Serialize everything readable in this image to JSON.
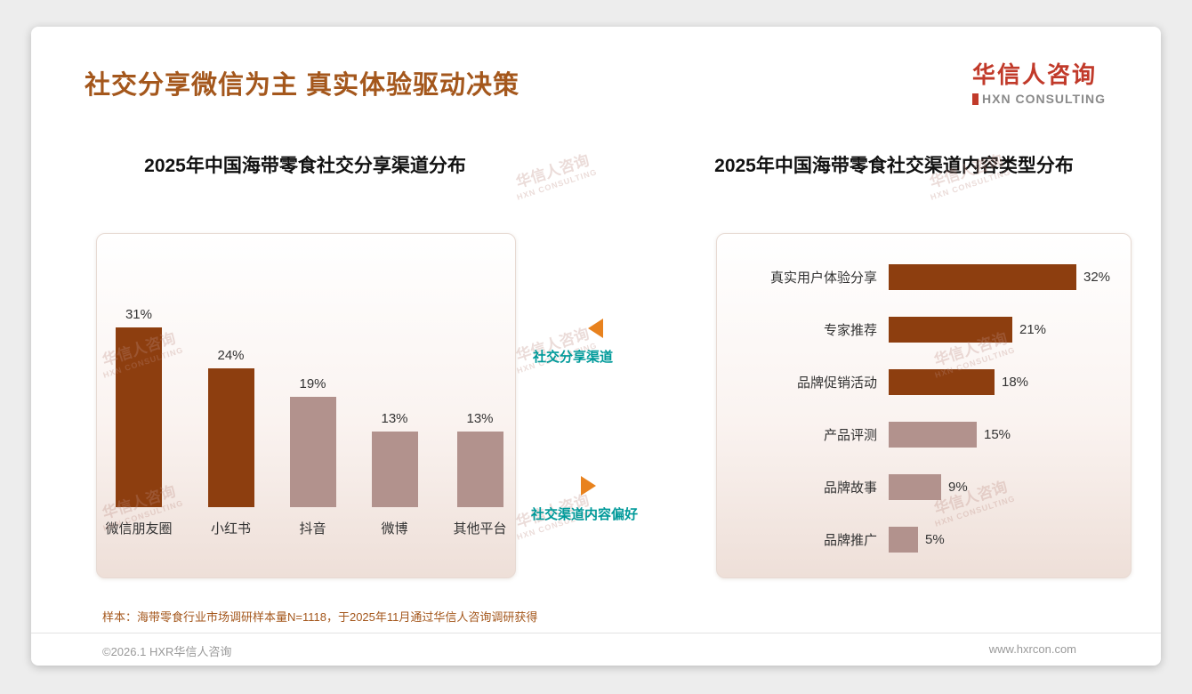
{
  "page": {
    "title": "社交分享微信为主 真实体验驱动决策",
    "logo": {
      "name": "华信人咨询",
      "subtitle": "HXN CONSULTING"
    },
    "sample_note": "样本：海带零食行业市场调研样本量N=1118，于2025年11月通过华信人咨询调研获得",
    "footer_left": "©2026.1 HXR华信人咨询",
    "footer_right": "www.hxrcon.com",
    "watermark_line1": "华信人咨询",
    "watermark_line2": "HXN CONSULTING"
  },
  "annotations": {
    "left_label": "社交分享渠道",
    "right_label": "社交渠道内容偏好"
  },
  "colors": {
    "title": "#A4571C",
    "dark_bar": "#8D3E0F",
    "light_bar": "#B2928D",
    "teal": "#009A9A",
    "orange": "#E8821E",
    "logo_red": "#C13A2A"
  },
  "chart_data": [
    {
      "type": "bar",
      "title": "2025年中国海带零食社交分享渠道分布",
      "categories": [
        "微信朋友圈",
        "小红书",
        "抖音",
        "微博",
        "其他平台"
      ],
      "values": [
        31,
        24,
        19,
        13,
        13
      ],
      "unit": "%",
      "ylim": [
        0,
        35
      ],
      "grid": false,
      "bar_colors": [
        "dark",
        "dark",
        "light",
        "light",
        "light"
      ]
    },
    {
      "type": "bar-horizontal",
      "title": "2025年中国海带零食社交渠道内容类型分布",
      "categories": [
        "真实用户体验分享",
        "专家推荐",
        "品牌促销活动",
        "产品评测",
        "品牌故事",
        "品牌推广"
      ],
      "values": [
        32,
        21,
        18,
        15,
        9,
        5
      ],
      "unit": "%",
      "xlim": [
        0,
        35
      ],
      "grid": false,
      "bar_colors": [
        "dark",
        "dark",
        "dark",
        "light",
        "light",
        "light"
      ]
    }
  ]
}
